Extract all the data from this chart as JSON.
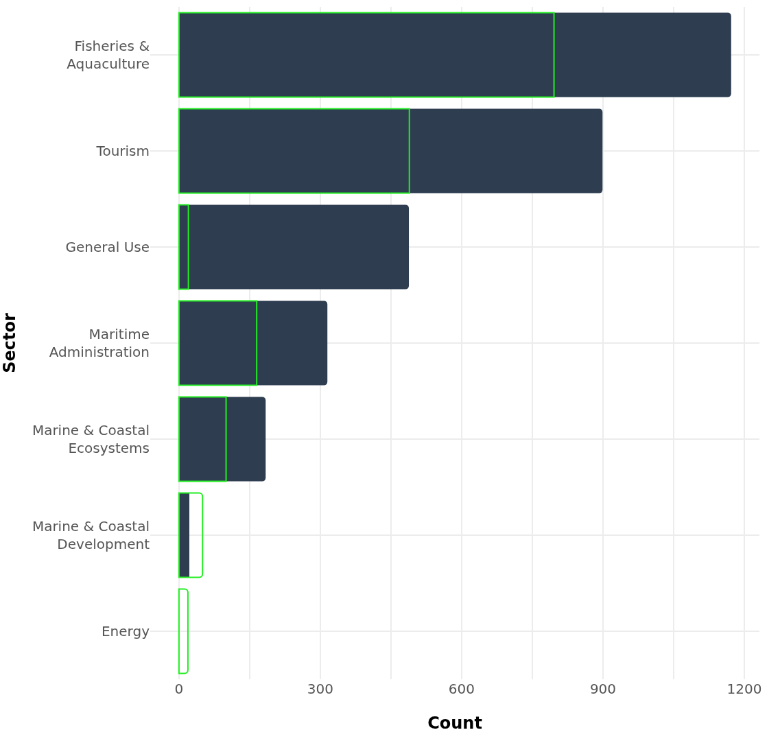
{
  "chart_data": {
    "type": "bar",
    "orientation": "horizontal",
    "xlabel": "Count",
    "ylabel": "Sector",
    "categories": [
      "Fisheries & Aquaculture",
      "Tourism",
      "General Use",
      "Maritime Administration",
      "Marine & Coastal Ecosystems",
      "Marine & Coastal Development",
      "Energy"
    ],
    "series": [
      {
        "color": "#2e3e50",
        "values": [
          1172,
          899,
          488,
          315,
          184,
          22,
          0
        ]
      },
      {
        "color": "#22ee22",
        "values": [
          796,
          489,
          20,
          165,
          100,
          50,
          19
        ]
      }
    ],
    "xlim": [
      -61,
      1232
    ],
    "xticks": [
      0,
      {
        "value": 150,
        "label": null
      },
      300,
      {
        "value": 450,
        "label": null
      },
      600,
      {
        "value": 750,
        "label": null
      },
      900,
      {
        "value": 1050,
        "label": null
      },
      1200
    ],
    "grid": true
  }
}
